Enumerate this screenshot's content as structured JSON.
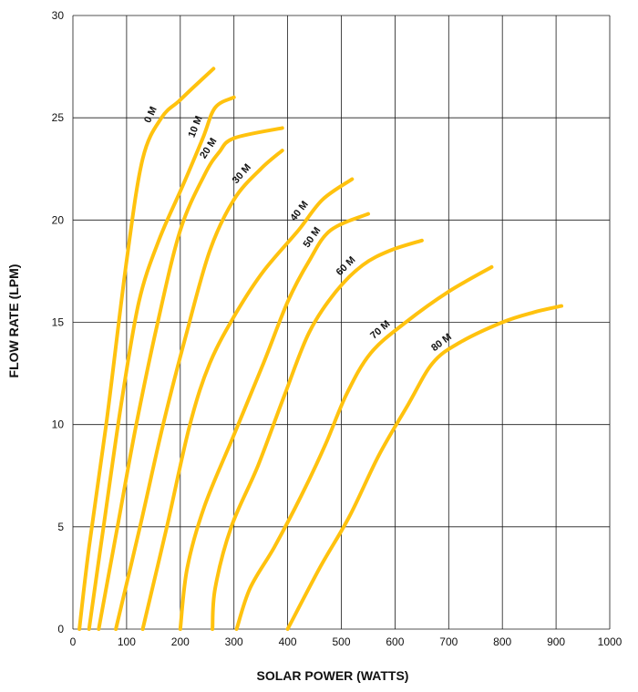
{
  "chart_data": {
    "type": "line",
    "title": "",
    "xlabel": "SOLAR POWER (WATTS)",
    "ylabel": "FLOW RATE (LPM)",
    "xlim": [
      0,
      1000
    ],
    "ylim": [
      0,
      30
    ],
    "x_ticks": [
      "0",
      "100",
      "200",
      "300",
      "400",
      "500",
      "600",
      "700",
      "800",
      "900",
      "1000"
    ],
    "y_ticks": [
      "0",
      "5",
      "10",
      "15",
      "20",
      "25",
      "30"
    ],
    "grid": true,
    "line_color": "#FFC20E",
    "series": [
      {
        "name": "0 M",
        "points": [
          [
            12,
            0
          ],
          [
            30,
            4
          ],
          [
            62,
            10
          ],
          [
            100,
            18
          ],
          [
            130,
            23
          ],
          [
            165,
            25
          ],
          [
            197,
            25.8
          ],
          [
            225,
            26.5
          ],
          [
            262,
            27.4
          ]
        ]
      },
      {
        "name": "10 M",
        "points": [
          [
            30,
            0
          ],
          [
            57,
            5
          ],
          [
            90,
            11
          ],
          [
            123,
            16
          ],
          [
            160,
            19
          ],
          [
            205,
            21.7
          ],
          [
            242,
            24
          ],
          [
            265,
            25.5
          ],
          [
            300,
            26
          ]
        ]
      },
      {
        "name": "20 M",
        "points": [
          [
            48,
            0
          ],
          [
            83,
            5
          ],
          [
            118,
            10
          ],
          [
            158,
            15
          ],
          [
            200,
            19.5
          ],
          [
            245,
            22.2
          ],
          [
            272,
            23.3
          ],
          [
            300,
            24
          ],
          [
            390,
            24.5
          ]
        ]
      },
      {
        "name": "30 M",
        "points": [
          [
            80,
            0
          ],
          [
            125,
            5
          ],
          [
            168,
            10
          ],
          [
            212,
            14.5
          ],
          [
            255,
            18.5
          ],
          [
            300,
            21
          ],
          [
            350,
            22.5
          ],
          [
            390,
            23.4
          ]
        ]
      },
      {
        "name": "40 M",
        "points": [
          [
            130,
            0
          ],
          [
            175,
            5
          ],
          [
            218,
            10
          ],
          [
            255,
            13
          ],
          [
            305,
            15.5
          ],
          [
            355,
            17.5
          ],
          [
            420,
            19.5
          ],
          [
            465,
            21
          ],
          [
            520,
            22
          ]
        ]
      },
      {
        "name": "50 M",
        "points": [
          [
            200,
            0
          ],
          [
            213,
            3
          ],
          [
            245,
            6
          ],
          [
            300,
            9.5
          ],
          [
            355,
            13
          ],
          [
            400,
            16
          ],
          [
            440,
            18
          ],
          [
            480,
            19.5
          ],
          [
            550,
            20.3
          ]
        ]
      },
      {
        "name": "60 M",
        "points": [
          [
            260,
            0
          ],
          [
            265,
            2
          ],
          [
            295,
            5
          ],
          [
            345,
            8
          ],
          [
            395,
            11.5
          ],
          [
            440,
            14.5
          ],
          [
            490,
            16.5
          ],
          [
            540,
            17.8
          ],
          [
            590,
            18.5
          ],
          [
            650,
            19
          ]
        ]
      },
      {
        "name": "70 M",
        "points": [
          [
            305,
            0
          ],
          [
            330,
            2
          ],
          [
            375,
            4
          ],
          [
            425,
            6.5
          ],
          [
            470,
            9
          ],
          [
            510,
            11.5
          ],
          [
            555,
            13.5
          ],
          [
            620,
            15
          ],
          [
            700,
            16.5
          ],
          [
            780,
            17.7
          ]
        ]
      },
      {
        "name": "80 M",
        "points": [
          [
            400,
            0
          ],
          [
            460,
            3
          ],
          [
            515,
            5.5
          ],
          [
            570,
            8.5
          ],
          [
            625,
            11
          ],
          [
            670,
            13
          ],
          [
            720,
            14
          ],
          [
            800,
            15
          ],
          [
            860,
            15.5
          ],
          [
            910,
            15.8
          ]
        ]
      }
    ]
  }
}
